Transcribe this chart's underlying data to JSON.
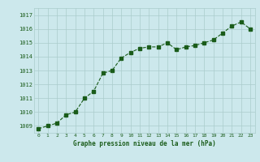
{
  "x": [
    0,
    1,
    2,
    3,
    4,
    5,
    6,
    7,
    8,
    9,
    10,
    11,
    12,
    13,
    14,
    15,
    16,
    17,
    18,
    19,
    20,
    21,
    22,
    23
  ],
  "y": [
    1008.8,
    1009.0,
    1009.2,
    1009.8,
    1010.0,
    1011.0,
    1011.5,
    1012.8,
    1013.0,
    1013.9,
    1014.3,
    1014.6,
    1014.7,
    1014.7,
    1015.0,
    1014.5,
    1014.7,
    1014.8,
    1015.0,
    1015.2,
    1015.7,
    1016.2,
    1016.5,
    1016.0
  ],
  "ylim": [
    1008.5,
    1017.5
  ],
  "yticks": [
    1009,
    1010,
    1011,
    1012,
    1013,
    1014,
    1015,
    1016,
    1017
  ],
  "xlim": [
    -0.5,
    23.5
  ],
  "xticks": [
    0,
    1,
    2,
    3,
    4,
    5,
    6,
    7,
    8,
    9,
    10,
    11,
    12,
    13,
    14,
    15,
    16,
    17,
    18,
    19,
    20,
    21,
    22,
    23
  ],
  "xlabel": "Graphe pression niveau de la mer (hPa)",
  "line_color": "#1a5c1a",
  "marker_color": "#1a5c1a",
  "bg_color": "#cce8ec",
  "grid_color": "#aacccc",
  "title": ""
}
